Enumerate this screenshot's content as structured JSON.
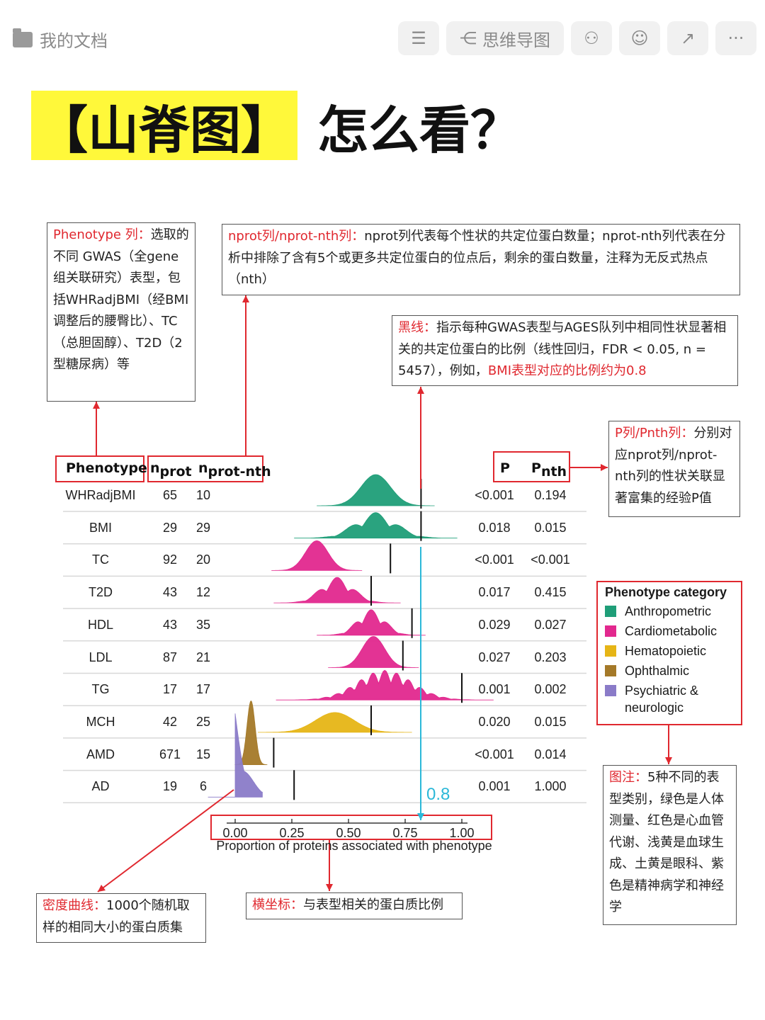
{
  "topbar": {
    "doc_label": "我的文档",
    "mindmap_label": "思维导图"
  },
  "title": {
    "highlight": "【山脊图】",
    "rest": "怎么看？"
  },
  "annotations": {
    "phenotype_col": {
      "key": "Phenotype 列：",
      "text": "选取的不同 GWAS（全gene组关联研究）表型，包括WHRadjBMI（经BMI调整后的腰臀比）、TC（总胆固醇）、T2D（2型糖尿病）等"
    },
    "nprot_col": {
      "key": "nprot列/nprot-nth列：",
      "text": "nprot列代表每个性状的共定位蛋白数量；nprot-nth列代表在分析中排除了含有5个或更多共定位蛋白的位点后，剩余的蛋白数量，注释为无反式热点（nth）"
    },
    "black_line": {
      "key": "黑线：",
      "text": "指示每种GWAS表型与AGES队列中相同性状显著相关的共定位蛋白的比例（线性回归，FDR < 0.05, n = 5457），例如，",
      "highlight": "BMI表型对应的比例约为0.8"
    },
    "p_col": {
      "key": "P列/Pnth列：",
      "text": "分别对应nprot列/nprot-nth列的性状关联显著富集的经验P值"
    },
    "legend_note": {
      "key": "图注：",
      "text": "5种不同的表型类别，绿色是人体测量、红色是心血管代谢、浅黄是血球生成、土黄是眼科、紫色是精神病学和神经学"
    },
    "density": {
      "key": "密度曲线：",
      "text": "1000个随机取样的相同大小的蛋白质集"
    },
    "xaxis": {
      "key": "横坐标：",
      "text": "与表型相关的蛋白质比例"
    },
    "value_08": "0.8"
  },
  "chart_data": {
    "type": "ridgeline",
    "headers": {
      "phenotype": "Phenotype",
      "nprot": "n",
      "nprot_sub": "prot",
      "nprotnth": "n",
      "nprotnth_sub": "prot-nth",
      "p": "P",
      "pnth": "P",
      "pnth_sub": "nth"
    },
    "xlabel": "Proportion of proteins associated with phenotype",
    "xlim": [
      0,
      1
    ],
    "xticks": [
      "0.00",
      "0.25",
      "0.50",
      "0.75",
      "1.00"
    ],
    "rows": [
      {
        "phenotype": "WHRadjBMI",
        "nprot": "65",
        "nprot_nth": "10",
        "p": "<0.001",
        "p_nth": "0.194",
        "category": "Anthropometric",
        "line": 0.82,
        "mean": 0.62,
        "sd": 0.065,
        "peaks": 1
      },
      {
        "phenotype": "BMI",
        "nprot": "29",
        "nprot_nth": "29",
        "p": "0.018",
        "p_nth": "0.015",
        "category": "Anthropometric",
        "line": 0.82,
        "mean": 0.62,
        "sd": 0.09,
        "peaks": 3
      },
      {
        "phenotype": "TC",
        "nprot": "92",
        "nprot_nth": "20",
        "p": "<0.001",
        "p_nth": "<0.001",
        "category": "Cardiometabolic",
        "line": 0.685,
        "mean": 0.36,
        "sd": 0.05,
        "peaks": 1
      },
      {
        "phenotype": "T2D",
        "nprot": "43",
        "nprot_nth": "12",
        "p": "0.017",
        "p_nth": "0.415",
        "category": "Cardiometabolic",
        "line": 0.6,
        "mean": 0.45,
        "sd": 0.07,
        "peaks": 3
      },
      {
        "phenotype": "HDL",
        "nprot": "43",
        "nprot_nth": "35",
        "p": "0.029",
        "p_nth": "0.027",
        "category": "Cardiometabolic",
        "line": 0.78,
        "mean": 0.6,
        "sd": 0.06,
        "peaks": 3
      },
      {
        "phenotype": "LDL",
        "nprot": "87",
        "nprot_nth": "21",
        "p": "0.027",
        "p_nth": "0.203",
        "category": "Cardiometabolic",
        "line": 0.74,
        "mean": 0.61,
        "sd": 0.05,
        "peaks": 1
      },
      {
        "phenotype": "TG",
        "nprot": "17",
        "nprot_nth": "17",
        "p": "0.001",
        "p_nth": "0.002",
        "category": "Cardiometabolic",
        "line": 1.0,
        "mean": 0.66,
        "sd": 0.12,
        "peaks": 9
      },
      {
        "phenotype": "MCH",
        "nprot": "42",
        "nprot_nth": "25",
        "p": "0.020",
        "p_nth": "0.015",
        "category": "Hematopoietic",
        "line": 0.6,
        "mean": 0.44,
        "sd": 0.085,
        "peaks": 1
      },
      {
        "phenotype": "AMD",
        "nprot": "671",
        "nprot_nth": "15",
        "p": "<0.001",
        "p_nth": "0.014",
        "category": "Ophthalmic",
        "line": 0.17,
        "mean": 0.07,
        "sd": 0.018,
        "peaks": 1
      },
      {
        "phenotype": "AD",
        "nprot": "19",
        "nprot_nth": "6",
        "p": "0.001",
        "p_nth": "1.000",
        "category": "Psychiatric & neurologic",
        "line": 0.26,
        "mean": 0.0,
        "sd": 0.03,
        "peaks": 3
      }
    ],
    "legend": {
      "title": "Phenotype category",
      "items": [
        {
          "label": "Anthropometric",
          "color": "#1f9e78"
        },
        {
          "label": "Cardiometabolic",
          "color": "#e2288e"
        },
        {
          "label": "Hematopoietic",
          "color": "#e6b516"
        },
        {
          "label": "Ophthalmic",
          "color": "#a47928"
        },
        {
          "label": "Psychiatric & neurologic",
          "color": "#8a7bc8"
        }
      ]
    },
    "grid": true,
    "legend_position": "right"
  }
}
